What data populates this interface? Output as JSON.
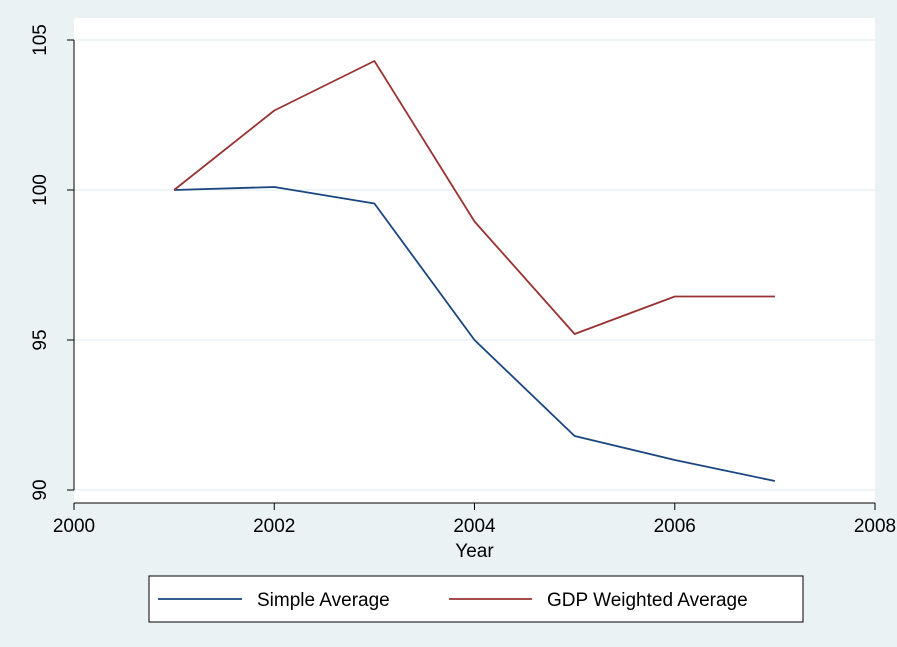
{
  "chart_data": {
    "type": "line",
    "title": "",
    "xlabel": "Year",
    "ylabel": "",
    "xlim": [
      2000,
      2008
    ],
    "ylim": [
      90,
      105
    ],
    "x_ticks": [
      2000,
      2002,
      2004,
      2006,
      2008
    ],
    "y_ticks": [
      90,
      95,
      100,
      105
    ],
    "grid": true,
    "legend_position": "bottom",
    "x": [
      2001,
      2002,
      2003,
      2004,
      2005,
      2006,
      2007
    ],
    "series": [
      {
        "name": "Simple Average",
        "color": "#1a4680",
        "values": [
          100.0,
          100.1,
          99.55,
          95.0,
          91.8,
          91.0,
          90.3
        ]
      },
      {
        "name": "GDP Weighted Average",
        "color": "#993333",
        "values": [
          100.0,
          102.65,
          104.3,
          98.95,
          95.2,
          96.45,
          96.45
        ]
      }
    ],
    "colors": {
      "background": "#eaf2f3",
      "plot_background": "#ffffff",
      "grid": "#eaf2f3"
    }
  }
}
